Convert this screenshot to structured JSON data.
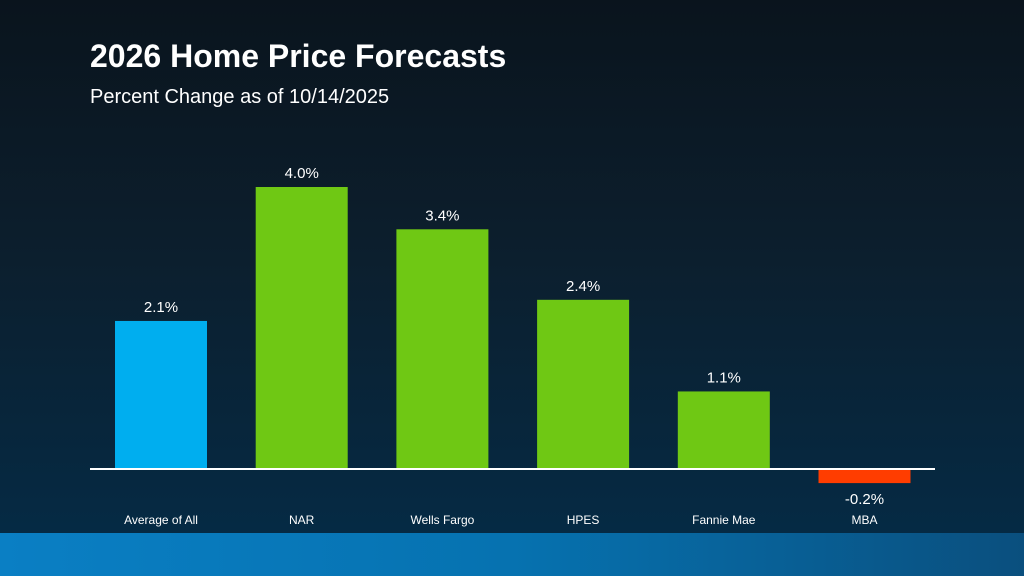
{
  "chart_data": {
    "type": "bar",
    "title": "2026 Home Price Forecasts",
    "subtitle": "Percent Change as of 10/14/2025",
    "categories": [
      "Average of All",
      "NAR",
      "Wells Fargo",
      "HPES",
      "Fannie Mae",
      "MBA"
    ],
    "values": [
      2.1,
      4.0,
      3.4,
      2.4,
      1.1,
      -0.2
    ],
    "data_labels": [
      "2.1%",
      "4.0%",
      "3.4%",
      "2.4%",
      "1.1%",
      "-0.2%"
    ],
    "colors": [
      "#00aeef",
      "#6fc814",
      "#6fc814",
      "#6fc814",
      "#6fc814",
      "#ff3d00"
    ],
    "xlabel": "",
    "ylabel": "",
    "grid": false,
    "legend": "none"
  }
}
